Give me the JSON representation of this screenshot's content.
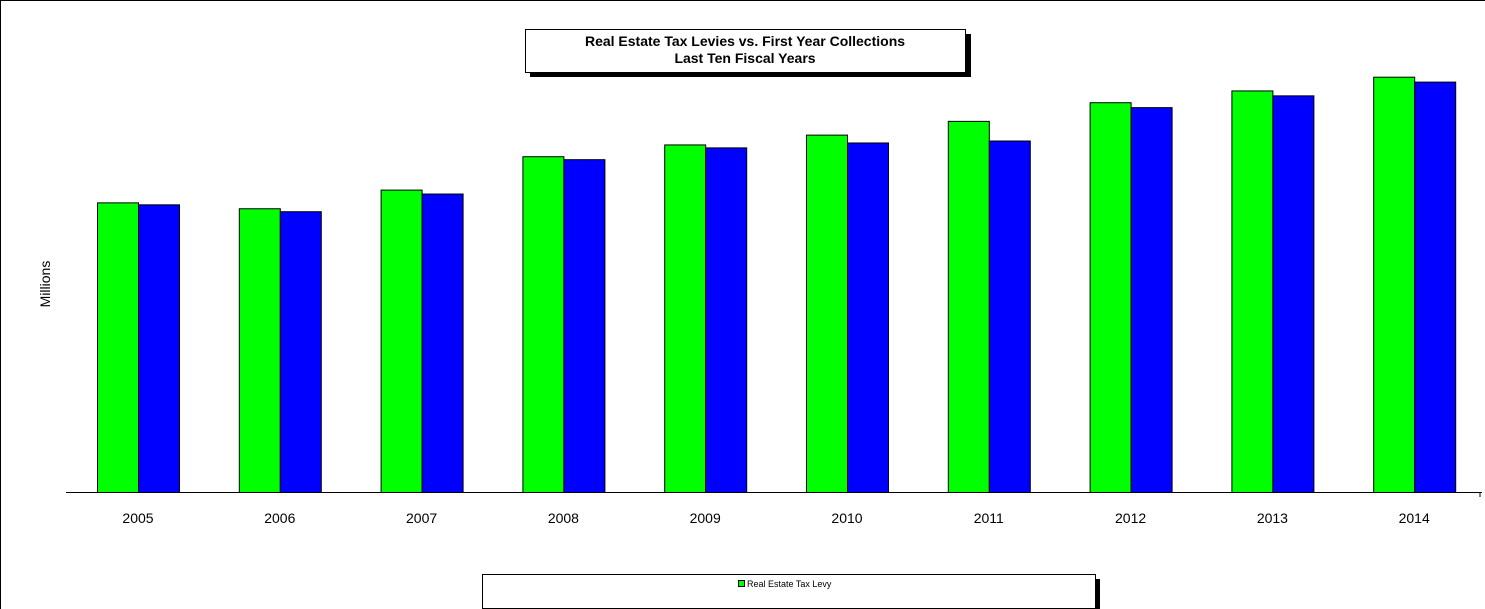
{
  "chart_data": {
    "type": "bar",
    "title_lines": [
      "Real Estate Tax Levies vs. First Year Collections",
      "Last Ten Fiscal Years"
    ],
    "ylabel": "Millions",
    "xlabel": "",
    "categories": [
      "2005",
      "2006",
      "2007",
      "2008",
      "2009",
      "2010",
      "2011",
      "2012",
      "2013",
      "2014"
    ],
    "ylim": [
      0,
      44
    ],
    "series": [
      {
        "name": "Real Estate Tax Levy",
        "color": "#00ff00",
        "values": [
          29.5,
          28.9,
          30.8,
          34.2,
          35.4,
          36.4,
          37.8,
          39.7,
          40.9,
          42.3
        ]
      },
      {
        "color": "#0000ff",
        "values": [
          29.3,
          28.6,
          30.4,
          33.9,
          35.1,
          35.6,
          35.8,
          39.2,
          40.4,
          41.8
        ]
      }
    ],
    "legend": {
      "position": "bottom-center",
      "entries": [
        "Real Estate Tax Levy"
      ]
    },
    "grid": false
  }
}
